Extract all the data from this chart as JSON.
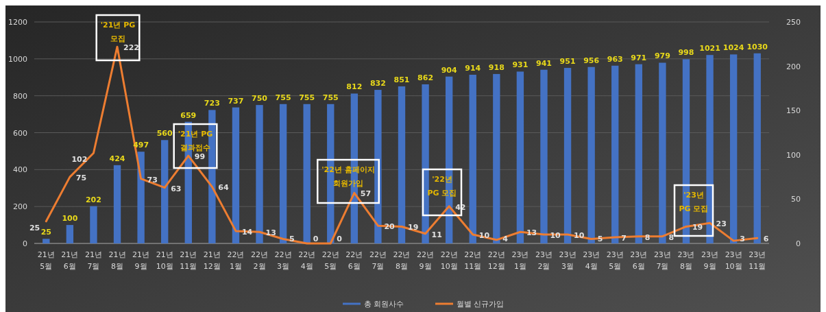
{
  "chart_data": {
    "type": "bar",
    "categories": [
      "21년 5월",
      "21년 6월",
      "21년 7월",
      "21년 8월",
      "21년 9월",
      "21년 10월",
      "21년 11월",
      "21년 12월",
      "22년 1월",
      "22년 2월",
      "22년 3월",
      "22년 4월",
      "22년 5월",
      "22년 6월",
      "22년 7월",
      "22년 8월",
      "22년 9월",
      "22년 10월",
      "22년 11월",
      "22년 12월",
      "23년 1월",
      "23년 2월",
      "23년 3월",
      "23년 4월",
      "23년 5월",
      "23년 6월",
      "23년 7월",
      "23년 8월",
      "23년 9월",
      "23년 10월",
      "23년 11월"
    ],
    "series": [
      {
        "name": "총 회원사수",
        "color": "#4472c4",
        "values": [
          25,
          100,
          202,
          424,
          497,
          560,
          659,
          723,
          737,
          750,
          755,
          755,
          755,
          812,
          832,
          851,
          862,
          904,
          914,
          918,
          931,
          941,
          951,
          956,
          963,
          971,
          979,
          998,
          1021,
          1024,
          1030
        ]
      },
      {
        "name": "월별 신규가입",
        "type": "line",
        "axis": "y2",
        "color": "#ed7d31",
        "values": [
          25,
          75,
          102,
          222,
          73,
          63,
          99,
          64,
          14,
          13,
          5,
          0,
          0,
          57,
          20,
          19,
          11,
          42,
          10,
          4,
          13,
          10,
          10,
          5,
          7,
          8,
          8,
          19,
          23,
          3,
          6
        ]
      }
    ],
    "ylim": [
      0,
      1200
    ],
    "yticks": [
      0,
      200,
      400,
      600,
      800,
      1000,
      1200
    ],
    "y2lim": [
      0,
      250
    ],
    "y2ticks": [
      0,
      50,
      100,
      150,
      200,
      250
    ],
    "grid": "y",
    "legend": "bottom",
    "data_labels": true,
    "marker": "none",
    "line_style": "solid",
    "annotations": [
      "'21년 PG\n모집",
      "'21년 PG\n결과접수",
      "'22년 홈페이지\n회원가입",
      "'22년\nPG 모집",
      "'23년\nPG 모집"
    ]
  }
}
